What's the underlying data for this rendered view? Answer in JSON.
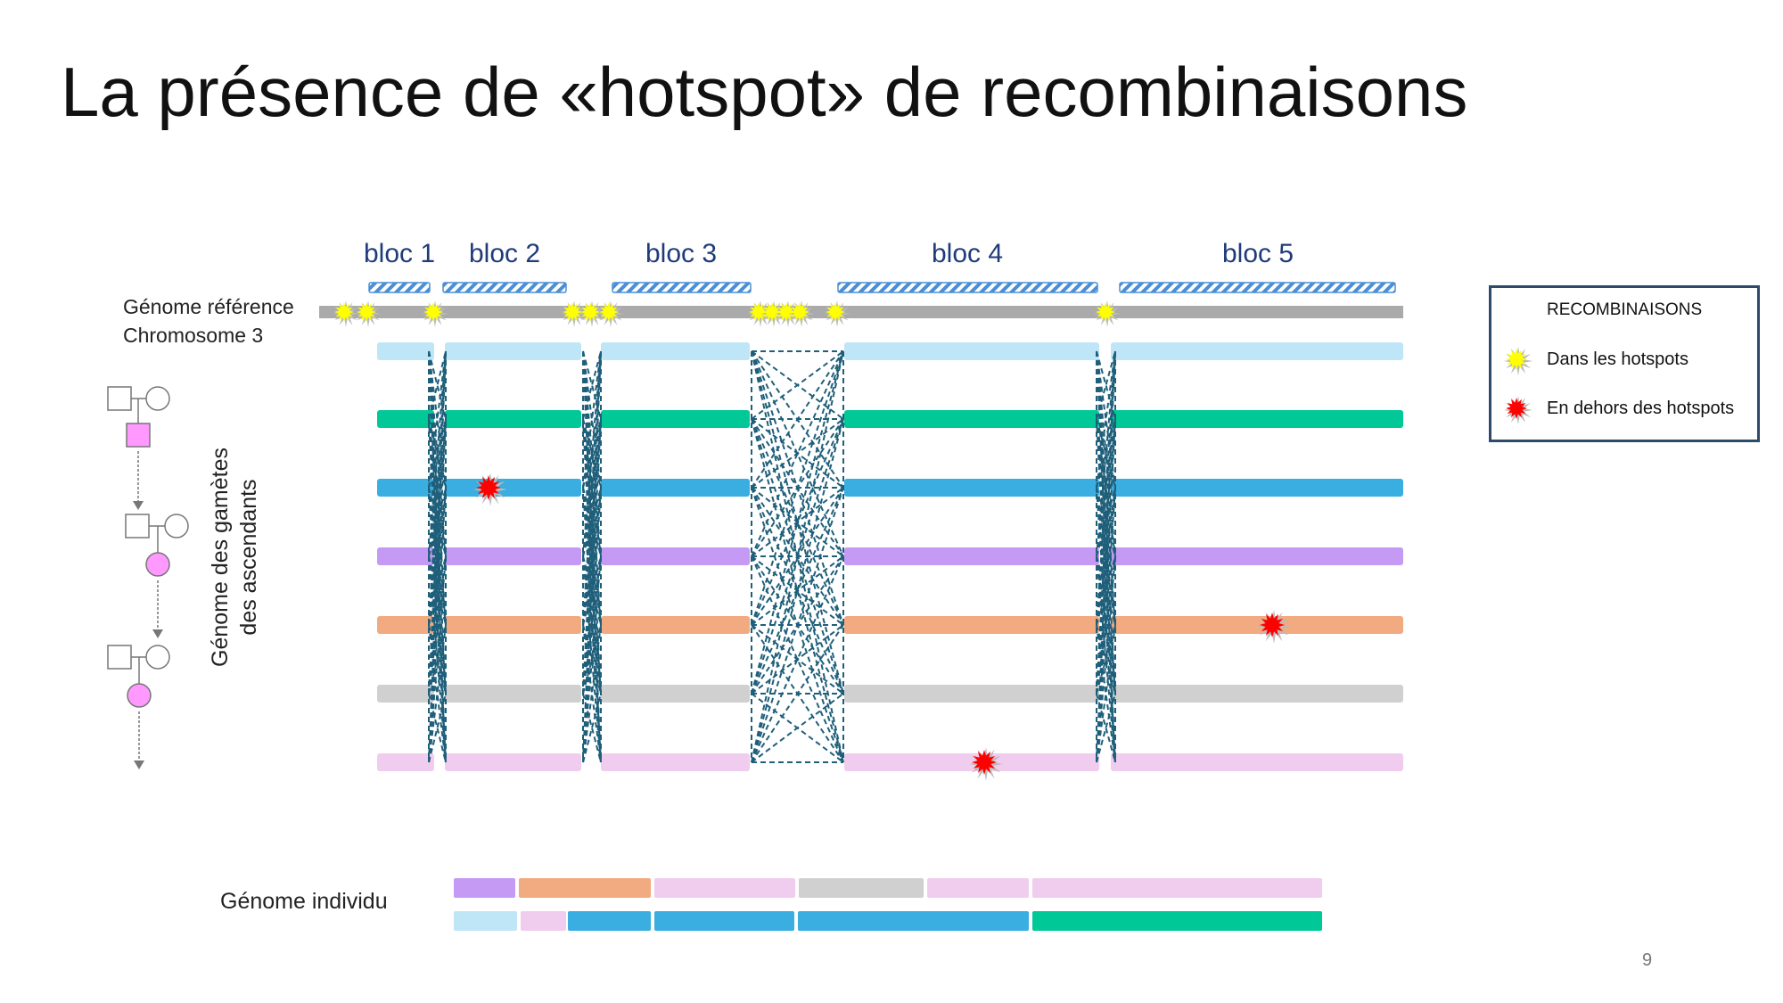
{
  "title": "La présence de «hotspot» de recombinaisons",
  "reference": {
    "line1": "Génome référence",
    "line2": "Chromosome  3"
  },
  "blocs": [
    "bloc 1",
    "bloc 2",
    "bloc 3",
    "bloc 4",
    "bloc 5"
  ],
  "vertical_label": {
    "line1": "Génome des gamètes",
    "line2": "des ascendants"
  },
  "individual_label": "Génome individu",
  "legend": {
    "title": "RECOMBINAISONS",
    "inside": "Dans les hotspots",
    "outside": "En dehors des hotspots"
  },
  "page_number": "9",
  "colors": {
    "rows": [
      "#bfe6f7",
      "#00c896",
      "#3aaee0",
      "#c59af5",
      "#f2aa80",
      "#d0d0d0",
      "#f0cdee"
    ],
    "reference": "#aaaaaa",
    "crossover": "#1f5f7a",
    "hotspot_star": "#ffff00",
    "outside_star": "#ff0000",
    "bloc_hatch": "#4a8fd6",
    "pedigree_affected": "#ff99ff"
  },
  "recombinations_outside": [
    {
      "row": 3,
      "segment": 2
    },
    {
      "row": 5,
      "segment": 5
    },
    {
      "row": 7,
      "segment": 4
    }
  ],
  "individual_genome": {
    "strand1": [
      "purple",
      "orange",
      "pink",
      "gray",
      "pink",
      "pink"
    ],
    "strand2": [
      "lightblue",
      "pink",
      "blue",
      "blue",
      "blue",
      "green"
    ]
  }
}
